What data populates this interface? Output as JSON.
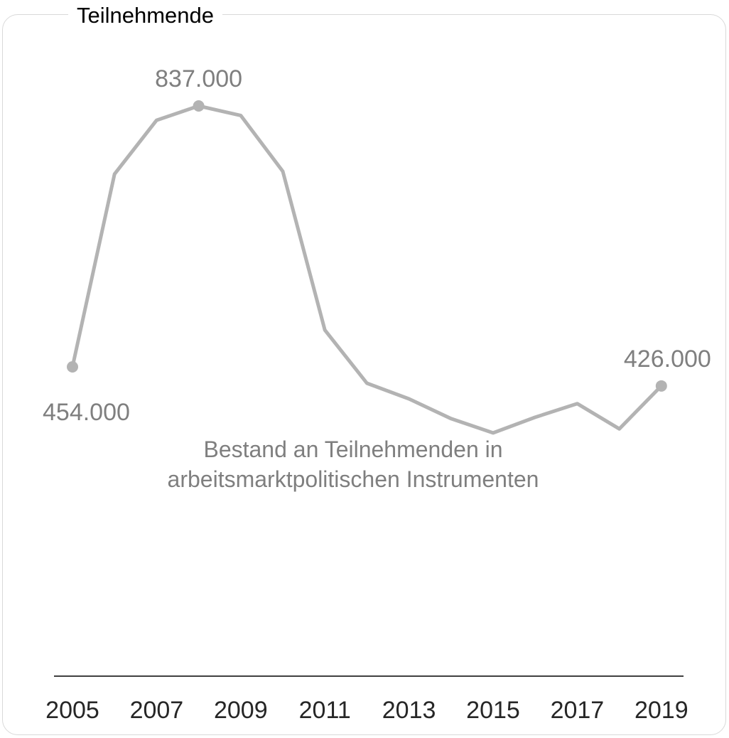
{
  "legend_title": "Teilnehmende",
  "colors": {
    "line": "#b3b3b3",
    "axis": "#404040",
    "text": "#7f7f7f",
    "tick": "#262626"
  },
  "chart_data": {
    "type": "line",
    "x": [
      2005,
      2006,
      2007,
      2008,
      2009,
      2010,
      2011,
      2012,
      2013,
      2014,
      2015,
      2016,
      2017,
      2018,
      2019
    ],
    "series": [
      {
        "name": "Bestand an Teilnehmenden in arbeitsmarktpolitischen Instrumenten",
        "name_lines": [
          "Bestand an Teilnehmenden in",
          "arbeitsmarktpolitischen Instrumenten"
        ],
        "values": [
          454000,
          737000,
          816000,
          837000,
          823000,
          741000,
          508000,
          430000,
          407000,
          378000,
          357000,
          380000,
          400000,
          363000,
          426000
        ]
      }
    ],
    "xticks": [
      "2005",
      "2007",
      "2009",
      "2011",
      "2013",
      "2015",
      "2017",
      "2019"
    ],
    "data_labels": [
      {
        "year": 2005,
        "text": "454.000",
        "pos": "below"
      },
      {
        "year": 2008,
        "text": "837.000",
        "pos": "above"
      },
      {
        "year": 2019,
        "text": "426.000",
        "pos": "above"
      }
    ],
    "marked_years": [
      2005,
      2008,
      2019
    ],
    "ylim": [
      0,
      837000
    ],
    "grid": false
  }
}
